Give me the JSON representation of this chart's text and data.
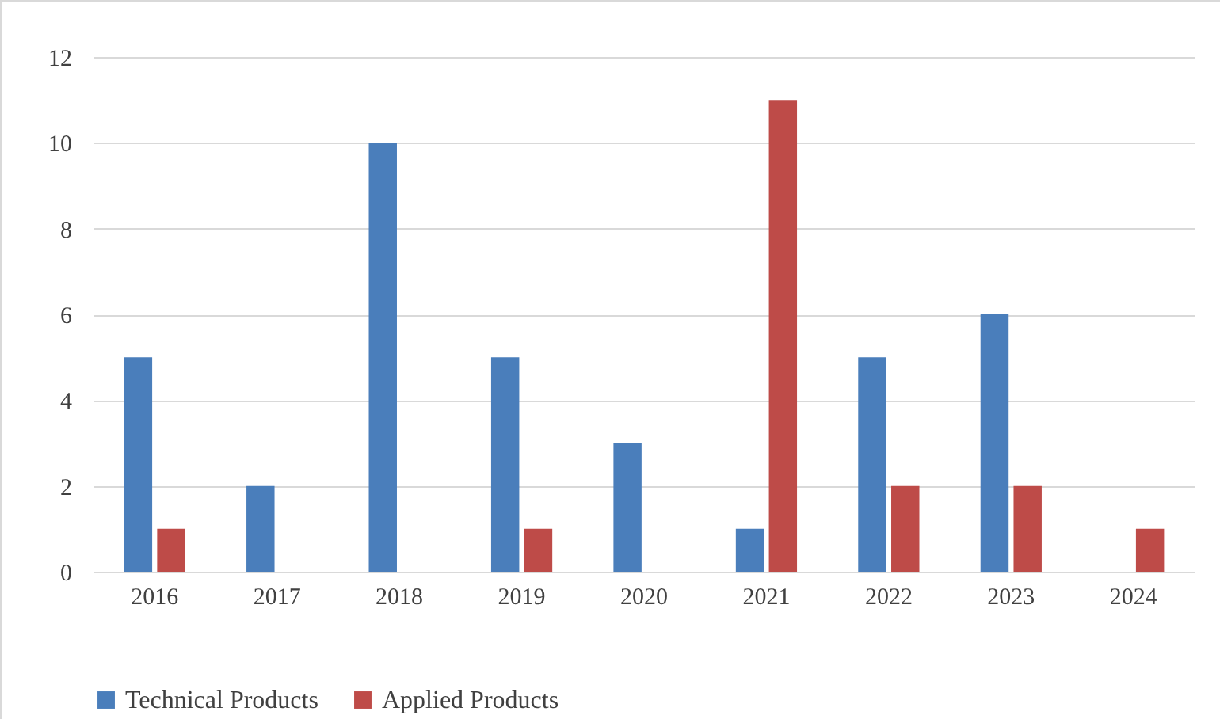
{
  "chart_data": {
    "type": "bar",
    "categories": [
      "2016",
      "2017",
      "2018",
      "2019",
      "2020",
      "2021",
      "2022",
      "2023",
      "2024"
    ],
    "series": [
      {
        "name": "Technical Products",
        "color": "#4a7ebb",
        "values": [
          5,
          2,
          10,
          5,
          3,
          1,
          5,
          6,
          null
        ]
      },
      {
        "name": "Applied Products",
        "color": "#be4b48",
        "values": [
          1,
          null,
          null,
          1,
          null,
          11,
          2,
          2,
          1
        ]
      }
    ],
    "ylim": [
      0,
      12
    ],
    "yticks": [
      0,
      2,
      4,
      6,
      8,
      10,
      12
    ],
    "grid": "y",
    "legend": "bottom"
  }
}
